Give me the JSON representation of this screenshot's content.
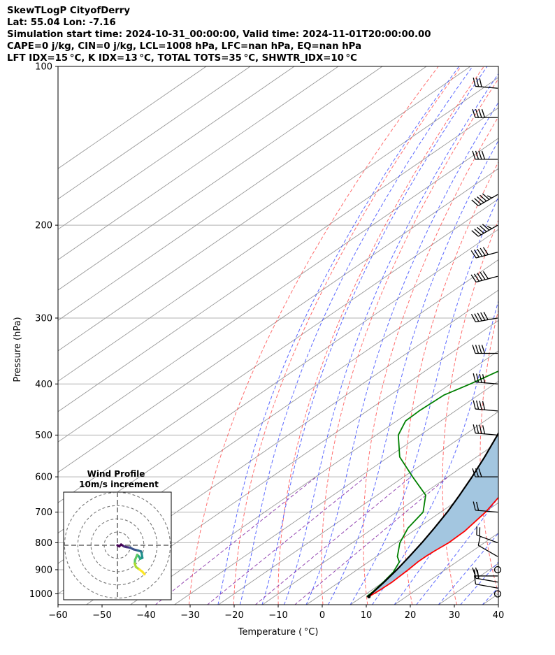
{
  "header": {
    "line1": "SkewTLogP CityofDerry",
    "line2": "Lat: 55.04   Lon: -7.16",
    "line3": "Simulation start time: 2024-10-31_00:00:00, Valid time: 2024-11-01T20:00:00.00",
    "line4": "CAPE=0 j/kg, CIN=0 j/kg, LCL=1008 hPa, LFC=nan hPa, EQ=nan hPa",
    "line5": "LFT IDX=15 °C, K IDX=13 °C, TOTAL TOTS=35 °C, SHWTR_IDX=10 °C"
  },
  "chart_data": {
    "type": "line",
    "diagram": "skew-T log-P",
    "xlabel": "Temperature ( °C)",
    "ylabel": "Pressure (hPa)",
    "xlim": [
      -60,
      40
    ],
    "ylim": [
      1050,
      100
    ],
    "y_scale": "log",
    "x_ticks": [
      -60,
      -50,
      -40,
      -30,
      -20,
      -10,
      0,
      10,
      20,
      30,
      40
    ],
    "y_ticks": [
      1000,
      900,
      800,
      700,
      600,
      500,
      400,
      300,
      200,
      100
    ],
    "grid": true,
    "background_lines": {
      "isotherm_color": "#999999",
      "dry_adiabat_color": "#ff5555",
      "moist_adiabat_color": "#3344ff",
      "mixing_ratio_color": "#8833aa"
    },
    "series": [
      {
        "role": "temperature",
        "color": "#ff0000",
        "points": [
          [
            1012,
            11.5
          ],
          [
            990,
            11.8
          ],
          [
            950,
            12.0
          ],
          [
            900,
            11.6
          ],
          [
            870,
            11.2
          ],
          [
            850,
            11.2
          ],
          [
            830,
            11.4
          ],
          [
            800,
            11.9
          ],
          [
            760,
            11.7
          ],
          [
            700,
            10.2
          ],
          [
            650,
            8.0
          ],
          [
            600,
            5.5
          ],
          [
            550,
            2.0
          ],
          [
            500,
            -2.2
          ],
          [
            450,
            -7.0
          ],
          [
            400,
            -12.6
          ],
          [
            370,
            -16.8
          ],
          [
            340,
            -19.8
          ],
          [
            300,
            -24.8
          ],
          [
            250,
            -32.0
          ],
          [
            220,
            -37.2
          ],
          [
            200,
            -42.0
          ],
          [
            185,
            -46.2
          ],
          [
            170,
            -47.0
          ],
          [
            160,
            -48.5
          ],
          [
            145,
            -51.0
          ],
          [
            135,
            -53.0
          ],
          [
            120,
            -55.5
          ],
          [
            110,
            -58.0
          ],
          [
            100,
            -61.0
          ]
        ]
      },
      {
        "role": "dewpoint",
        "color": "#008000",
        "points": [
          [
            1012,
            11.0
          ],
          [
            990,
            10.8
          ],
          [
            950,
            10.0
          ],
          [
            910,
            9.0
          ],
          [
            870,
            7.0
          ],
          [
            850,
            4.8
          ],
          [
            800,
            0.8
          ],
          [
            750,
            -2.2
          ],
          [
            700,
            -4.0
          ],
          [
            650,
            -9.0
          ],
          [
            600,
            -18.0
          ],
          [
            550,
            -27.5
          ],
          [
            500,
            -35.0
          ],
          [
            470,
            -38.0
          ],
          [
            450,
            -38.2
          ],
          [
            420,
            -37.8
          ],
          [
            400,
            -35.5
          ],
          [
            380,
            -33.5
          ],
          [
            360,
            -30.5
          ],
          [
            340,
            -29.8
          ],
          [
            300,
            -34.0
          ],
          [
            270,
            -38.5
          ],
          [
            240,
            -43.5
          ],
          [
            220,
            -46.0
          ],
          [
            200,
            -50.5
          ],
          [
            185,
            -54.0
          ],
          [
            175,
            -54.0
          ],
          [
            160,
            -54.0
          ],
          [
            145,
            -53.5
          ],
          [
            130,
            -52.5
          ],
          [
            120,
            -53.0
          ],
          [
            110,
            -55.5
          ],
          [
            100,
            -61.0
          ]
        ]
      },
      {
        "role": "parcel",
        "color": "#000000",
        "points": [
          [
            1012,
            11.5
          ],
          [
            1008,
            11.3
          ],
          [
            950,
            10.2
          ],
          [
            900,
            9.0
          ],
          [
            850,
            7.5
          ],
          [
            800,
            5.8
          ],
          [
            750,
            3.8
          ],
          [
            700,
            1.5
          ],
          [
            650,
            -1.3
          ],
          [
            600,
            -4.5
          ],
          [
            550,
            -8.2
          ],
          [
            500,
            -12.5
          ],
          [
            450,
            -17.5
          ],
          [
            400,
            -23.5
          ],
          [
            350,
            -30.5
          ],
          [
            300,
            -39.0
          ],
          [
            250,
            -49.0
          ],
          [
            200,
            -61.0
          ],
          [
            150,
            -76.0
          ],
          [
            120,
            -88.0
          ],
          [
            100,
            -97.0
          ]
        ]
      }
    ],
    "cape_shading": {
      "color": "#a3c6e0",
      "between": [
        "parcel",
        "temperature"
      ]
    },
    "wind_barbs": {
      "pressures": [
        1000,
        975,
        950,
        925,
        900,
        850,
        800,
        700,
        600,
        500,
        450,
        400,
        350,
        300,
        250,
        225,
        200,
        175,
        150,
        125,
        110
      ],
      "speeds_kt": [
        0,
        12,
        20,
        20,
        0,
        10,
        20,
        20,
        30,
        40,
        40,
        40,
        40,
        50,
        50,
        50,
        55,
        55,
        40,
        40,
        30
      ],
      "directions_deg": [
        0,
        280,
        280,
        270,
        0,
        300,
        290,
        275,
        270,
        275,
        275,
        275,
        270,
        260,
        255,
        255,
        240,
        240,
        270,
        270,
        275
      ]
    },
    "hodograph": {
      "title": "Wind Profile",
      "subtitle": "10m/s increment",
      "ring_increment_ms": 10,
      "points_uv": [
        [
          0,
          0
        ],
        [
          1.2,
          -0.8
        ],
        [
          2.5,
          0.5
        ],
        [
          4.5,
          -0.8
        ],
        [
          6,
          -1.2
        ],
        [
          8.5,
          -1.6
        ],
        [
          11,
          -2.8
        ],
        [
          14,
          -3.6
        ],
        [
          16,
          -4.2
        ],
        [
          16.5,
          -5.5
        ],
        [
          16.8,
          -7.5
        ],
        [
          17,
          -8.6
        ],
        [
          15.5,
          -9.2
        ],
        [
          14.5,
          -7.5
        ],
        [
          13.5,
          -6.5
        ],
        [
          12,
          -10
        ],
        [
          11.8,
          -12.5
        ],
        [
          12.6,
          -14.8
        ],
        [
          15,
          -16.5
        ],
        [
          17,
          -18
        ],
        [
          18.5,
          -19.8
        ]
      ],
      "colormap": "viridis"
    }
  }
}
